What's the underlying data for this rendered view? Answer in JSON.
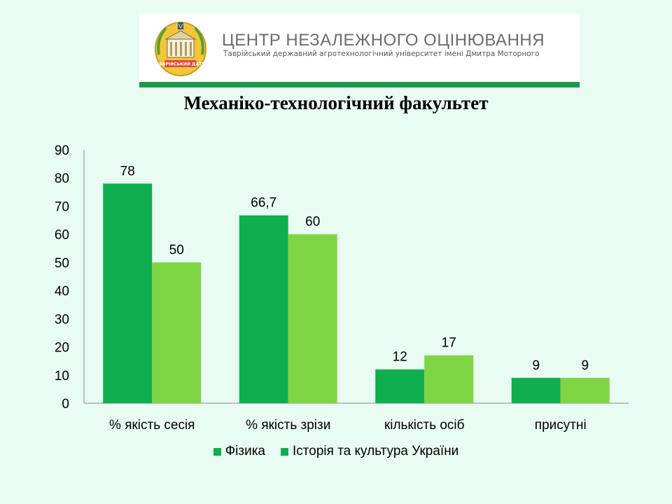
{
  "header": {
    "org_name": "ЦЕНТР НЕЗАЛЕЖНОГО ОЦІНЮВАННЯ",
    "org_subtitle": "Таврійський державний агротехнологічний університет імені Дмитра Моторного",
    "logo_icon": "university-crest-icon",
    "logo_text": "ТАВРІЙСЬКИЙ ДАТУ",
    "accent_color": "#1a9a4a"
  },
  "chart_data": {
    "type": "bar",
    "title": "Механіко-технологічний факультет",
    "categories": [
      "% якість сесія",
      "% якість зрізи",
      "кількість осіб",
      "присутні"
    ],
    "series": [
      {
        "name": "Фізика",
        "values": [
          78,
          66.7,
          12,
          9
        ],
        "labels": [
          "78",
          "66,7",
          "12",
          "9"
        ],
        "color": "#0fae4e"
      },
      {
        "name": "Історія та культура України",
        "values": [
          50,
          60,
          17,
          9
        ],
        "labels": [
          "50",
          "60",
          "17",
          "9"
        ],
        "color": "#7fd444"
      }
    ],
    "ylim": [
      0,
      90
    ],
    "y_ticks": [
      0,
      10,
      20,
      30,
      40,
      50,
      60,
      70,
      80,
      90
    ],
    "grid": false,
    "legend": "bottom",
    "legend_swatch_color": "#0fae4e"
  }
}
